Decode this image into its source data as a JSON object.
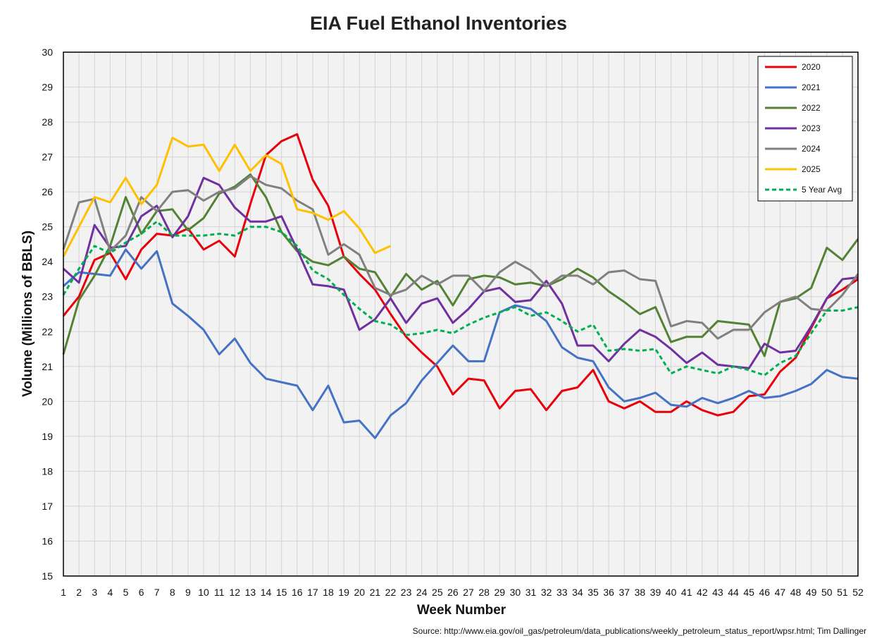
{
  "chart_data": {
    "type": "line",
    "title": "EIA Fuel Ethanol Inventories",
    "xlabel": "Week Number",
    "ylabel": "Volume (Millions of BBLS)",
    "source": "Source: http://www.eia.gov/oil_gas/petroleum/data_publications/weekly_petroleum_status_report/wpsr.html; Tim Dallinger",
    "xlim": [
      1,
      52
    ],
    "ylim": [
      15,
      30
    ],
    "yticks": [
      15,
      16,
      17,
      18,
      19,
      20,
      21,
      22,
      23,
      24,
      25,
      26,
      27,
      28,
      29,
      30
    ],
    "x": [
      1,
      2,
      3,
      4,
      5,
      6,
      7,
      8,
      9,
      10,
      11,
      12,
      13,
      14,
      15,
      16,
      17,
      18,
      19,
      20,
      21,
      22,
      23,
      24,
      25,
      26,
      27,
      28,
      29,
      30,
      31,
      32,
      33,
      34,
      35,
      36,
      37,
      38,
      39,
      40,
      41,
      42,
      43,
      44,
      45,
      46,
      47,
      48,
      49,
      50,
      51,
      52
    ],
    "grid": true,
    "legend_position": "top-right",
    "series": [
      {
        "name": "2020",
        "color": "#e8000b",
        "dashed": false,
        "values": [
          22.45,
          23.0,
          24.05,
          24.25,
          23.5,
          24.35,
          24.8,
          24.75,
          24.95,
          24.35,
          24.6,
          24.15,
          25.65,
          27.05,
          27.45,
          27.65,
          26.35,
          25.6,
          24.15,
          23.65,
          23.2,
          22.5,
          21.85,
          21.4,
          21.0,
          20.2,
          20.65,
          20.6,
          19.8,
          20.3,
          20.35,
          19.75,
          20.3,
          20.4,
          20.9,
          20.0,
          19.8,
          20.0,
          19.7,
          19.7,
          20.0,
          19.75,
          19.6,
          19.7,
          20.15,
          20.2,
          20.85,
          21.25,
          22.1,
          22.95,
          23.2,
          23.5
        ]
      },
      {
        "name": "2021",
        "color": "#4472c4",
        "dashed": false,
        "values": [
          23.3,
          23.7,
          23.65,
          23.6,
          24.35,
          23.8,
          24.3,
          22.8,
          22.45,
          22.05,
          21.35,
          21.8,
          21.1,
          20.65,
          20.55,
          20.45,
          19.75,
          20.45,
          19.4,
          19.45,
          18.95,
          19.6,
          19.95,
          20.6,
          21.1,
          21.6,
          21.15,
          21.15,
          22.55,
          22.75,
          22.65,
          22.3,
          21.55,
          21.25,
          21.15,
          20.4,
          20.0,
          20.1,
          20.25,
          19.9,
          19.85,
          20.1,
          19.95,
          20.1,
          20.3,
          20.1,
          20.15,
          20.3,
          20.5,
          20.9,
          20.7,
          20.65
        ]
      },
      {
        "name": "2022",
        "color": "#548235",
        "dashed": false,
        "values": [
          21.35,
          22.9,
          23.6,
          24.45,
          25.85,
          24.8,
          25.45,
          25.5,
          24.9,
          25.25,
          25.95,
          26.15,
          26.5,
          25.85,
          24.85,
          24.3,
          24.0,
          23.9,
          24.15,
          23.8,
          23.7,
          23.0,
          23.65,
          23.2,
          23.45,
          22.75,
          23.5,
          23.6,
          23.55,
          23.35,
          23.4,
          23.3,
          23.5,
          23.8,
          23.55,
          23.15,
          22.85,
          22.5,
          22.7,
          21.7,
          21.85,
          21.85,
          22.3,
          22.25,
          22.2,
          21.3,
          22.85,
          22.95,
          23.25,
          24.4,
          24.05,
          24.65
        ]
      },
      {
        "name": "2023",
        "color": "#7030a0",
        "dashed": false,
        "values": [
          23.8,
          23.4,
          25.05,
          24.4,
          24.45,
          25.3,
          25.6,
          24.7,
          25.3,
          26.4,
          26.2,
          25.55,
          25.15,
          25.15,
          25.3,
          24.35,
          23.35,
          23.3,
          23.2,
          22.05,
          22.35,
          22.95,
          22.25,
          22.8,
          22.95,
          22.25,
          22.65,
          23.15,
          23.25,
          22.85,
          22.9,
          23.45,
          22.8,
          21.6,
          21.6,
          21.15,
          21.65,
          22.05,
          21.85,
          21.5,
          21.1,
          21.4,
          21.05,
          21.0,
          20.95,
          21.65,
          21.4,
          21.45,
          22.15,
          22.95,
          23.5,
          23.55
        ]
      },
      {
        "name": "2024",
        "color": "#808080",
        "dashed": false,
        "values": [
          24.35,
          25.7,
          25.8,
          24.3,
          24.75,
          25.85,
          25.45,
          26.0,
          26.05,
          25.75,
          26.0,
          26.1,
          26.45,
          26.2,
          26.1,
          25.75,
          25.5,
          24.2,
          24.5,
          24.2,
          23.25,
          23.05,
          23.2,
          23.6,
          23.35,
          23.6,
          23.6,
          23.15,
          23.7,
          24.0,
          23.75,
          23.3,
          23.6,
          23.6,
          23.35,
          23.7,
          23.75,
          23.5,
          23.45,
          22.15,
          22.3,
          22.25,
          21.8,
          22.05,
          22.05,
          22.55,
          22.85,
          23.0,
          22.65,
          22.6,
          23.05,
          23.65
        ]
      },
      {
        "name": "2025",
        "color": "#ffc000",
        "dashed": false,
        "values": [
          24.15,
          25.0,
          25.85,
          25.7,
          26.4,
          25.65,
          26.2,
          27.55,
          27.3,
          27.35,
          26.6,
          27.35,
          26.6,
          27.05,
          26.8,
          25.5,
          25.4,
          25.2,
          25.45,
          24.95,
          24.25,
          24.45,
          null,
          null,
          null,
          null,
          null,
          null,
          null,
          null,
          null,
          null,
          null,
          null,
          null,
          null,
          null,
          null,
          null,
          null,
          null,
          null,
          null,
          null,
          null,
          null,
          null,
          null,
          null,
          null,
          null,
          null
        ]
      },
      {
        "name": "5 Year Avg",
        "color": "#00b050",
        "dashed": true,
        "values": [
          23.05,
          23.8,
          24.45,
          24.25,
          24.55,
          24.8,
          25.15,
          24.75,
          24.75,
          24.75,
          24.8,
          24.75,
          25.0,
          25.0,
          24.85,
          24.45,
          23.75,
          23.5,
          23.05,
          22.65,
          22.3,
          22.2,
          21.9,
          21.95,
          22.05,
          21.95,
          22.2,
          22.4,
          22.55,
          22.7,
          22.45,
          22.55,
          22.3,
          22.0,
          22.2,
          21.45,
          21.5,
          21.45,
          21.5,
          20.8,
          21.0,
          20.9,
          20.8,
          21.0,
          20.9,
          20.75,
          21.1,
          21.3,
          21.95,
          22.6,
          22.6,
          22.7
        ]
      }
    ]
  }
}
